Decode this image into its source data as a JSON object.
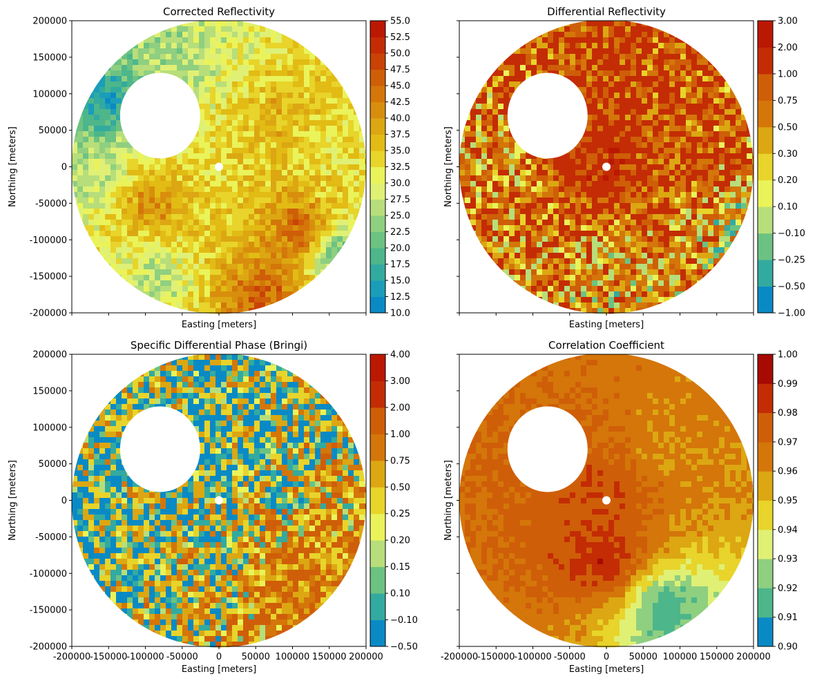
{
  "figure": {
    "panels": [
      {
        "key": "reflectivity",
        "title": "Corrected Reflectivity"
      },
      {
        "key": "zdr",
        "title": "Differential Reflectivity"
      },
      {
        "key": "kdp",
        "title": "Specific Differential Phase (Bringi)"
      },
      {
        "key": "rhohv",
        "title": "Correlation Coefficient"
      }
    ]
  },
  "chart_data": [
    {
      "type": "heatmap",
      "title": "Corrected Reflectivity",
      "xlabel": "Easting [meters]",
      "ylabel": "Northing [meters]",
      "xlim": [
        -200000,
        200000
      ],
      "ylim": [
        -200000,
        200000
      ],
      "x_tick_labels_shown": false,
      "y_ticks": [
        200000,
        150000,
        100000,
        50000,
        0,
        -50000,
        -100000,
        -150000,
        -200000
      ],
      "colorbar": {
        "ticks": [
          "10.0",
          "12.5",
          "15.0",
          "17.5",
          "20.0",
          "22.5",
          "25.0",
          "27.5",
          "30.0",
          "32.5",
          "35.0",
          "37.5",
          "40.0",
          "42.5",
          "45.0",
          "47.5",
          "50.0",
          "52.5",
          "55.0"
        ],
        "colors": [
          "#0a8ac5",
          "#1b9dba",
          "#33aaa0",
          "#4db68a",
          "#6cc282",
          "#8fcf80",
          "#b7de7a",
          "#dff075",
          "#eaf35a",
          "#e8d42a",
          "#e2bb14",
          "#dca712",
          "#d88e0c",
          "#d4760a",
          "#cf5e08",
          "#c94206",
          "#c32c04",
          "#bb1802"
        ]
      },
      "field": [
        {
          "region": "northwest echo-free hole",
          "x": -80000,
          "y": 70000,
          "value": null
        },
        {
          "region": "north-northwest",
          "x": -60000,
          "y": 150000,
          "value": 25
        },
        {
          "region": "northwest rim",
          "x": -150000,
          "y": 90000,
          "value": 13
        },
        {
          "region": "west",
          "x": -170000,
          "y": -20000,
          "value": 26
        },
        {
          "region": "west-southwest core",
          "x": -90000,
          "y": -50000,
          "value": 44
        },
        {
          "region": "center",
          "x": 0,
          "y": -30000,
          "value": 33
        },
        {
          "region": "northeast",
          "x": 80000,
          "y": 60000,
          "value": 38
        },
        {
          "region": "east",
          "x": 150000,
          "y": 20000,
          "value": 32
        },
        {
          "region": "southeast squall line",
          "x": 110000,
          "y": -90000,
          "value": 50
        },
        {
          "region": "south",
          "x": 60000,
          "y": -180000,
          "value": 48
        },
        {
          "region": "south-southwest",
          "x": -80000,
          "y": -150000,
          "value": 25
        },
        {
          "region": "far east-southeast",
          "x": 160000,
          "y": -120000,
          "value": 17
        }
      ]
    },
    {
      "type": "heatmap",
      "title": "Differential Reflectivity",
      "xlabel": "Easting [meters]",
      "ylabel": "Northing [meters]",
      "xlim": [
        -200000,
        200000
      ],
      "ylim": [
        -200000,
        200000
      ],
      "x_tick_labels_shown": false,
      "y_tick_labels_shown": false,
      "colorbar": {
        "ticks": [
          "−1.00",
          "−0.50",
          "−0.25",
          "−0.10",
          "0.10",
          "0.20",
          "0.30",
          "0.50",
          "0.75",
          "1.00",
          "2.00",
          "3.00"
        ],
        "colors": [
          "#0a8ac5",
          "#33aaa0",
          "#6cc282",
          "#b7de7a",
          "#eaf35a",
          "#e8d42a",
          "#dca712",
          "#d4760a",
          "#cf5e08",
          "#c32c04",
          "#bb1802"
        ]
      },
      "field": [
        {
          "region": "northwest echo-free hole",
          "x": -80000,
          "y": 70000,
          "value": null
        },
        {
          "region": "center",
          "x": 0,
          "y": 0,
          "value": 1.5
        },
        {
          "region": "east",
          "x": 100000,
          "y": 0,
          "value": 1.0
        },
        {
          "region": "west",
          "x": -150000,
          "y": 0,
          "value": 0.6
        },
        {
          "region": "south",
          "x": 0,
          "y": -150000,
          "value": 0.4
        },
        {
          "region": "outer rim",
          "x": 180000,
          "y": -80000,
          "value": 0.2
        }
      ]
    },
    {
      "type": "heatmap",
      "title": "Specific Differential Phase (Bringi)",
      "xlabel": "Easting [meters]",
      "ylabel": "Northing [meters]",
      "xlim": [
        -200000,
        200000
      ],
      "ylim": [
        -200000,
        200000
      ],
      "x_ticks": [
        -200000,
        -150000,
        -100000,
        -50000,
        0,
        50000,
        100000,
        150000,
        200000
      ],
      "y_ticks": [
        200000,
        150000,
        100000,
        50000,
        0,
        -50000,
        -100000,
        -150000,
        -200000
      ],
      "colorbar": {
        "ticks": [
          "−0.50",
          "−0.10",
          "0.10",
          "0.15",
          "0.20",
          "0.25",
          "0.50",
          "0.75",
          "1.00",
          "2.00",
          "3.00",
          "4.00"
        ],
        "colors": [
          "#0a8ac5",
          "#33aaa0",
          "#6cc282",
          "#b7de7a",
          "#eaf35a",
          "#e8d42a",
          "#dca712",
          "#d4760a",
          "#cf5e08",
          "#c32c04",
          "#bb1802"
        ]
      },
      "field": [
        {
          "region": "northwest echo-free hole",
          "x": -80000,
          "y": 70000,
          "value": null
        },
        {
          "region": "bulk of domain",
          "x": 0,
          "y": 50000,
          "value": 0.0
        },
        {
          "region": "west",
          "x": -150000,
          "y": -20000,
          "value": 0.05
        },
        {
          "region": "southeast squall line",
          "x": 100000,
          "y": -110000,
          "value": 1.2
        },
        {
          "region": "south center",
          "x": 0,
          "y": -80000,
          "value": 0.3
        }
      ]
    },
    {
      "type": "heatmap",
      "title": "Correlation Coefficient",
      "xlabel": "Easting [meters]",
      "ylabel": "Northing [meters]",
      "xlim": [
        -200000,
        200000
      ],
      "ylim": [
        -200000,
        200000
      ],
      "x_ticks": [
        -200000,
        -150000,
        -100000,
        -50000,
        0,
        50000,
        100000,
        150000,
        200000
      ],
      "y_tick_labels_shown": false,
      "colorbar": {
        "ticks": [
          "0.90",
          "0.91",
          "0.92",
          "0.93",
          "0.94",
          "0.95",
          "0.96",
          "0.97",
          "0.98",
          "0.99",
          "1.00"
        ],
        "colors": [
          "#0a8ac5",
          "#4db68a",
          "#8fcf80",
          "#dff075",
          "#e8d42a",
          "#dca712",
          "#d4760a",
          "#cf5e08",
          "#c32c04",
          "#a60a02"
        ]
      },
      "field": [
        {
          "region": "northwest echo-free hole",
          "x": -80000,
          "y": 70000,
          "value": null
        },
        {
          "region": "bulk of domain",
          "x": 0,
          "y": -80000,
          "value": 0.99
        },
        {
          "region": "center",
          "x": 0,
          "y": 20000,
          "value": 0.98
        },
        {
          "region": "northeast",
          "x": 70000,
          "y": 70000,
          "value": 0.96
        },
        {
          "region": "south-southeast",
          "x": 80000,
          "y": -150000,
          "value": 0.91
        }
      ]
    }
  ]
}
